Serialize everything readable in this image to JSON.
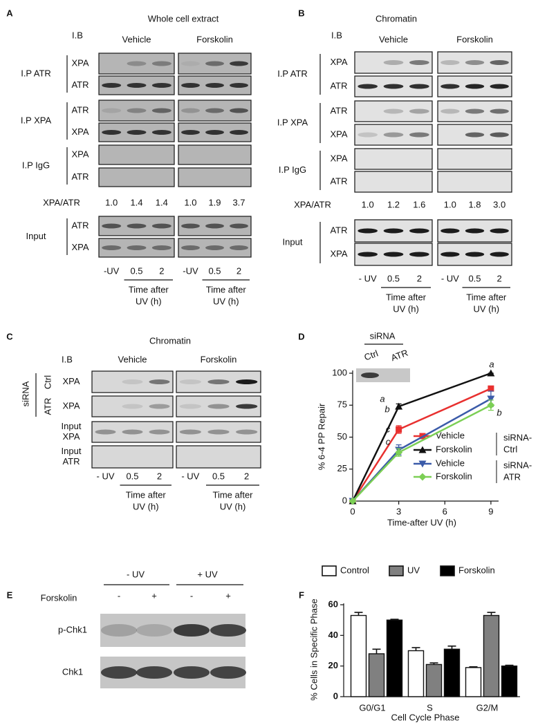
{
  "panels": {
    "A": {
      "label": "A",
      "title": "Whole cell extract",
      "ib": "I.B",
      "groups": [
        "Vehicle",
        "Forskolin"
      ],
      "ip_groups": [
        {
          "label": "I.P ATR",
          "rows": [
            "XPA",
            "ATR"
          ]
        },
        {
          "label": "I.P XPA",
          "rows": [
            "ATR",
            "XPA"
          ]
        },
        {
          "label": "I.P IgG",
          "rows": [
            "XPA",
            "ATR"
          ]
        }
      ],
      "ratio_label": "XPA/ATR",
      "ratios": [
        "1.0",
        "1.4",
        "1.4",
        "1.0",
        "1.9",
        "3.7"
      ],
      "input": {
        "label": "Input",
        "rows": [
          "ATR",
          "XPA"
        ]
      },
      "lanes": [
        "-UV",
        "0.5",
        "2"
      ],
      "time_label": [
        "Time after",
        "UV (h)"
      ]
    },
    "B": {
      "label": "B",
      "title": "Chromatin",
      "ib": "I.B",
      "groups": [
        "Vehicle",
        "Forskolin"
      ],
      "ip_groups": [
        {
          "label": "I.P  ATR",
          "rows": [
            "XPA",
            "ATR"
          ]
        },
        {
          "label": "I.P  XPA",
          "rows": [
            "ATR",
            "XPA"
          ]
        },
        {
          "label": "I.P  IgG",
          "rows": [
            "XPA",
            "ATR"
          ]
        }
      ],
      "ratio_label": "XPA/ATR",
      "ratios": [
        "1.0",
        "1.2",
        "1.6",
        "1.0",
        "1.8",
        "3.0"
      ],
      "input": {
        "label": "Input",
        "rows": [
          "ATR",
          "XPA"
        ]
      },
      "lanes": [
        "- UV",
        "0.5",
        "2"
      ],
      "time_label": [
        "Time after",
        "UV (h)"
      ]
    },
    "C": {
      "label": "C",
      "title": "Chromatin",
      "ib": "I.B",
      "groups": [
        "Vehicle",
        "Forskolin"
      ],
      "sirna": "siRNA",
      "sirna_groups": [
        "Ctrl",
        "ATR"
      ],
      "rows": [
        [
          "XPA"
        ],
        [
          "XPA"
        ],
        [
          "Input",
          "XPA"
        ],
        [
          "Input",
          "ATR"
        ]
      ],
      "lanes": [
        "- UV",
        "0.5",
        "2"
      ],
      "time_label": [
        "Time after",
        "UV (h)"
      ]
    },
    "E": {
      "label": "E",
      "uv": [
        "- UV",
        "+ UV"
      ],
      "forskolin_label": "Forskolin",
      "forskolin": [
        "-",
        "+",
        "-",
        "+"
      ],
      "rows": [
        "p-Chk1",
        "Chk1"
      ]
    }
  },
  "chart_data": [
    {
      "type": "line",
      "panel_label": "D",
      "x": [
        0,
        3,
        9
      ],
      "xlim": [
        0,
        9.5
      ],
      "xticks": [
        0,
        3,
        6,
        9
      ],
      "ylim": [
        0,
        100
      ],
      "yticks": [
        0,
        25,
        50,
        75,
        100
      ],
      "xlabel": "Time-after UV (h)",
      "ylabel": "% 6-4 PP Repair",
      "inset": {
        "title": "siRNA",
        "lanes": [
          "Ctrl",
          "ATR"
        ]
      },
      "series": [
        {
          "name": "Vehicle",
          "color": "#e8302f",
          "marker": "square",
          "values": [
            0,
            56,
            88
          ],
          "errors": [
            0,
            3,
            1
          ]
        },
        {
          "name": "Forskolin",
          "color": "#111111",
          "marker": "triangle-up",
          "values": [
            0,
            74,
            100
          ],
          "errors": [
            0,
            2,
            0
          ]
        },
        {
          "name": "Vehicle",
          "color": "#3b5ba9",
          "marker": "triangle-down",
          "values": [
            0,
            40,
            80
          ],
          "errors": [
            0,
            4,
            6
          ]
        },
        {
          "name": "Forskolin",
          "color": "#7ccf55",
          "marker": "diamond",
          "values": [
            0,
            38,
            75
          ],
          "errors": [
            0,
            3,
            4
          ]
        }
      ],
      "legend_groups": [
        [
          "siRNA-",
          "Ctrl"
        ],
        [
          "siRNA-",
          "ATR"
        ]
      ],
      "annotations": [
        "a",
        "b",
        "c",
        "c",
        "a",
        "b"
      ]
    },
    {
      "type": "bar",
      "panel_label": "F",
      "categories": [
        "G0/G1",
        "S",
        "G2/M"
      ],
      "ylim": [
        0,
        60
      ],
      "yticks": [
        0,
        20,
        40,
        60
      ],
      "xlabel": "Cell Cycle Phase",
      "ylabel": "% Cells in Specific Phase",
      "series": [
        {
          "name": "Control",
          "color": "#ffffff",
          "values": [
            53,
            30,
            19
          ],
          "errors": [
            2,
            2,
            0.5
          ]
        },
        {
          "name": "UV",
          "color": "#808080",
          "values": [
            28,
            21,
            53
          ],
          "errors": [
            3,
            1,
            2
          ]
        },
        {
          "name": "Forskolin",
          "color": "#000000",
          "values": [
            50,
            31,
            20
          ],
          "errors": [
            0.5,
            2,
            0.5
          ]
        }
      ]
    }
  ]
}
